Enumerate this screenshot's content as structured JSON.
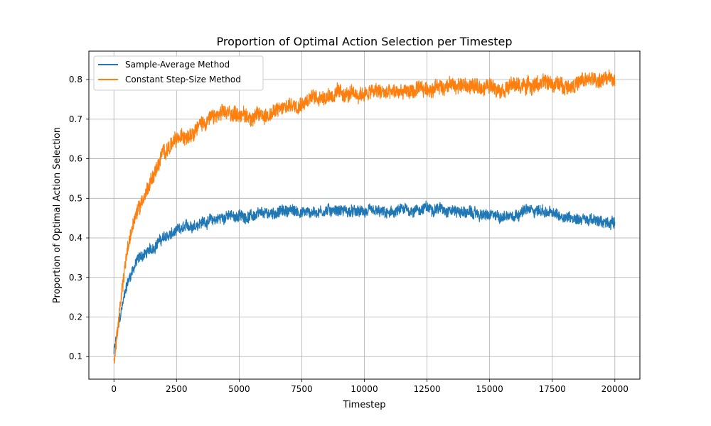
{
  "chart_data": {
    "type": "line",
    "title": "Proportion of Optimal Action Selection per Timestep",
    "xlabel": "Timestep",
    "ylabel": "Proportion of Optimal Action Selection",
    "xlim": [
      -1000,
      21000
    ],
    "ylim": [
      0.043,
      0.872
    ],
    "xticks": [
      0,
      2500,
      5000,
      7500,
      10000,
      12500,
      15000,
      17500,
      20000
    ],
    "xtick_labels": [
      "0",
      "2500",
      "5000",
      "7500",
      "10000",
      "12500",
      "15000",
      "17500",
      "20000"
    ],
    "yticks": [
      0.1,
      0.2,
      0.3,
      0.4,
      0.5,
      0.6,
      0.7,
      0.8
    ],
    "ytick_labels": [
      "0.1",
      "0.2",
      "0.3",
      "0.4",
      "0.5",
      "0.6",
      "0.7",
      "0.8"
    ],
    "grid": true,
    "legend_position": "top-left",
    "series": [
      {
        "name": "Sample-Average Method",
        "color": "#1f77b4",
        "x": [
          0,
          250,
          500,
          750,
          1000,
          1250,
          1500,
          1750,
          2000,
          2500,
          3000,
          3500,
          4000,
          4500,
          5000,
          5500,
          6000,
          6500,
          7000,
          7500,
          8000,
          8500,
          9000,
          9500,
          10000,
          10500,
          11000,
          11500,
          12000,
          12500,
          13000,
          13500,
          14000,
          14500,
          15000,
          15500,
          16000,
          16500,
          17000,
          17500,
          18000,
          18500,
          19000,
          19500,
          20000
        ],
        "y": [
          0.11,
          0.2,
          0.28,
          0.32,
          0.35,
          0.36,
          0.37,
          0.39,
          0.4,
          0.415,
          0.43,
          0.44,
          0.445,
          0.455,
          0.455,
          0.455,
          0.46,
          0.465,
          0.47,
          0.465,
          0.465,
          0.47,
          0.47,
          0.465,
          0.465,
          0.465,
          0.46,
          0.47,
          0.47,
          0.475,
          0.475,
          0.47,
          0.465,
          0.46,
          0.455,
          0.455,
          0.46,
          0.47,
          0.47,
          0.46,
          0.455,
          0.45,
          0.445,
          0.44,
          0.44
        ]
      },
      {
        "name": "Constant Step-Size Method",
        "color": "#ff7f0e",
        "x": [
          0,
          250,
          500,
          750,
          1000,
          1250,
          1500,
          1750,
          2000,
          2500,
          3000,
          3500,
          4000,
          4500,
          5000,
          5500,
          6000,
          6500,
          7000,
          7500,
          8000,
          8500,
          9000,
          9500,
          10000,
          10500,
          11000,
          11500,
          12000,
          12500,
          13000,
          13500,
          14000,
          14500,
          15000,
          15500,
          16000,
          16500,
          17000,
          17500,
          18000,
          18500,
          19000,
          19500,
          20000
        ],
        "y": [
          0.09,
          0.22,
          0.36,
          0.43,
          0.48,
          0.51,
          0.55,
          0.58,
          0.62,
          0.645,
          0.665,
          0.69,
          0.705,
          0.715,
          0.715,
          0.705,
          0.71,
          0.72,
          0.735,
          0.745,
          0.755,
          0.76,
          0.765,
          0.76,
          0.765,
          0.77,
          0.765,
          0.77,
          0.77,
          0.775,
          0.785,
          0.785,
          0.785,
          0.78,
          0.785,
          0.78,
          0.785,
          0.785,
          0.79,
          0.79,
          0.785,
          0.79,
          0.8,
          0.8,
          0.8
        ]
      }
    ]
  }
}
